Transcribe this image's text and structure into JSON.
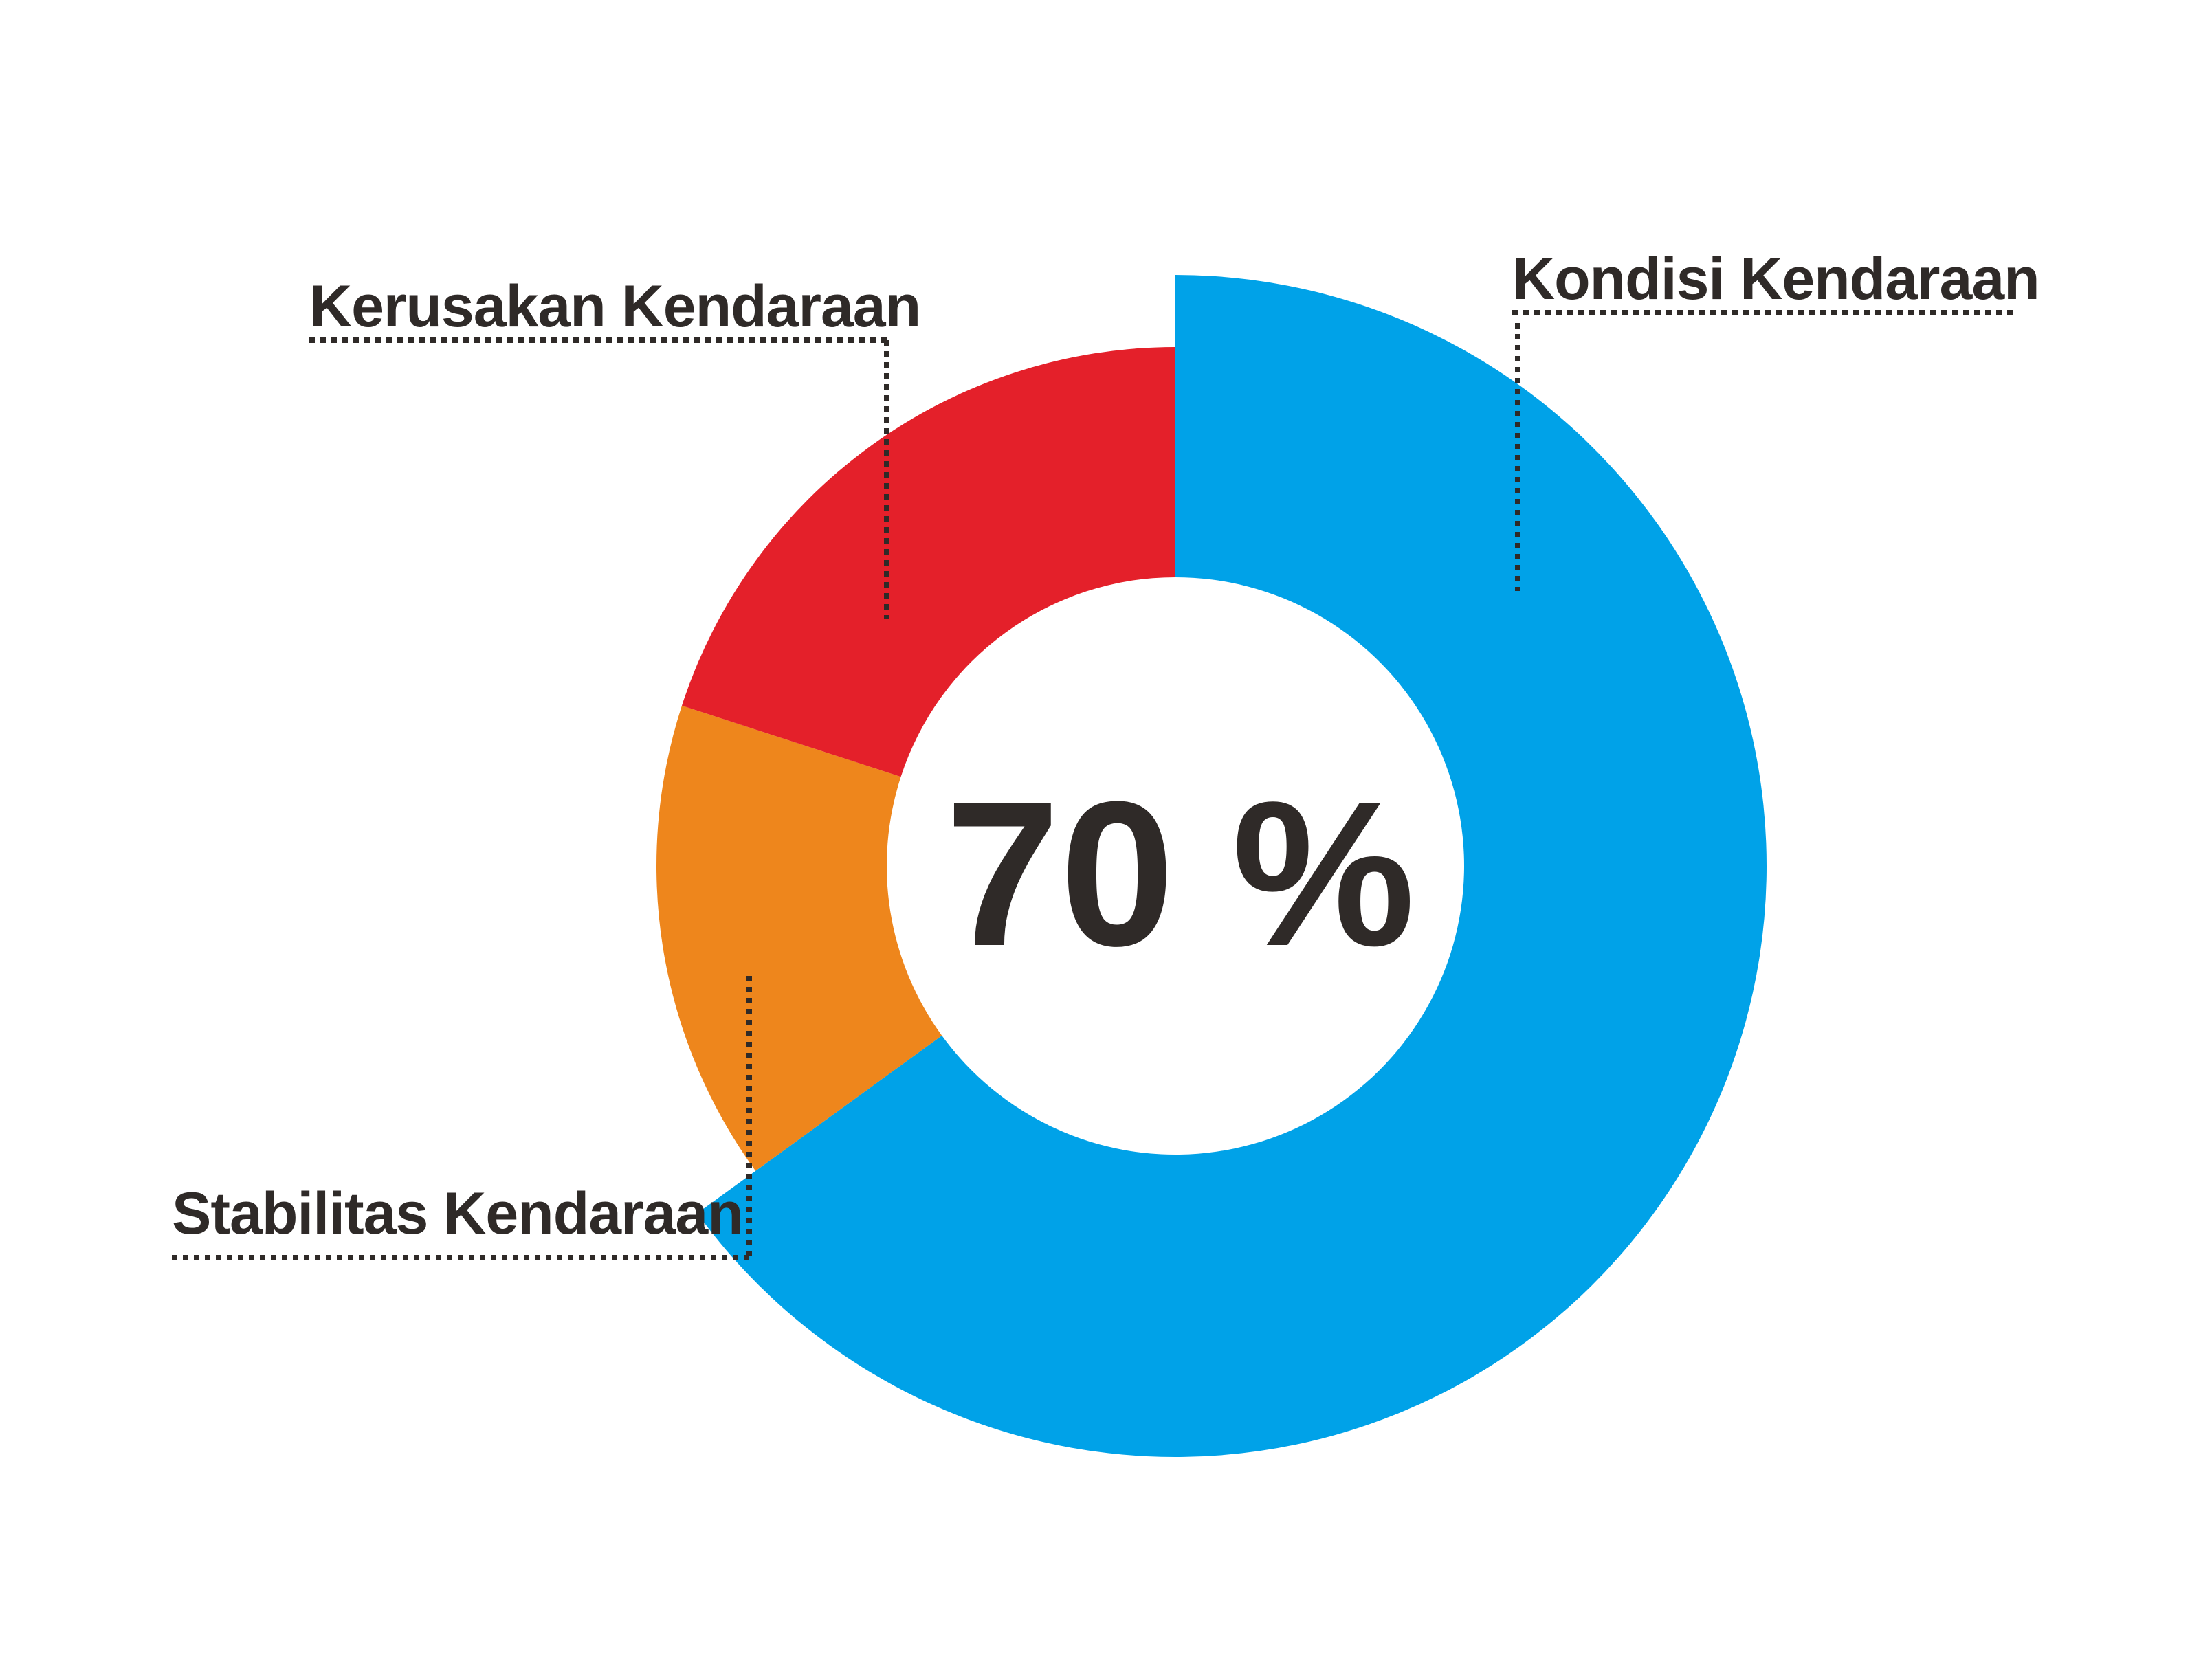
{
  "chart_data": {
    "type": "pie",
    "center_label": "70 %",
    "series": [
      {
        "name": "Kondisi Kendaraan",
        "value": 65,
        "color": "#00a2e8"
      },
      {
        "name": "Stabilitas Kendaraan",
        "value": 15,
        "color": "#ee861c"
      },
      {
        "name": "Kerusakan Kendaraan",
        "value": 20,
        "color": "#e4202a"
      }
    ],
    "legend": "callout-labels",
    "grid": false
  }
}
